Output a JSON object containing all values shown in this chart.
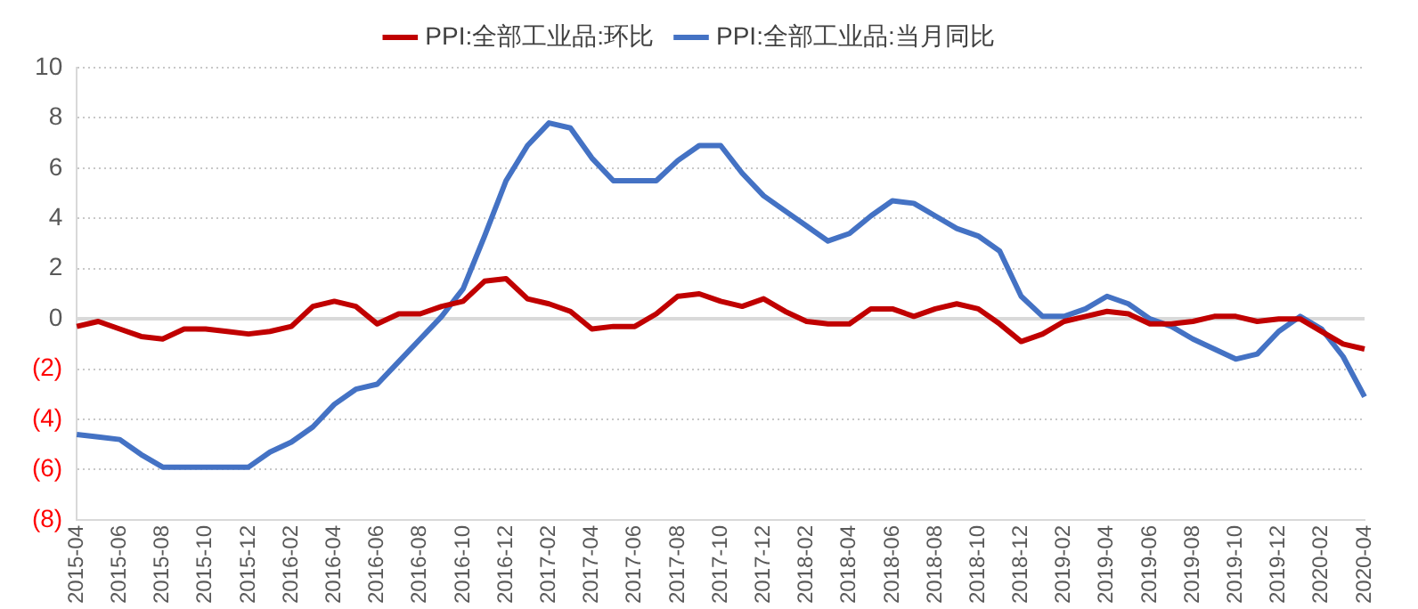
{
  "chart_data": {
    "type": "line",
    "categories": [
      "2015-04",
      null,
      "2015-06",
      null,
      "2015-08",
      null,
      "2015-10",
      null,
      "2015-12",
      null,
      "2016-02",
      null,
      "2016-04",
      null,
      "2016-06",
      null,
      "2016-08",
      null,
      "2016-10",
      null,
      "2016-12",
      null,
      "2017-02",
      null,
      "2017-04",
      null,
      "2017-06",
      null,
      "2017-08",
      null,
      "2017-10",
      null,
      "2017-12",
      null,
      "2018-02",
      null,
      "2018-04",
      null,
      "2018-06",
      null,
      "2018-08",
      null,
      "2018-10",
      null,
      "2018-12",
      null,
      "2019-02",
      null,
      "2019-04",
      null,
      "2019-06",
      null,
      "2019-08",
      null,
      "2019-10",
      null,
      "2019-12",
      null,
      "2020-02",
      null,
      "2020-04"
    ],
    "series": [
      {
        "name": "PPI:全部工业品:环比",
        "color": "#c00000",
        "values": [
          -0.3,
          -0.1,
          -0.4,
          -0.7,
          -0.8,
          -0.4,
          -0.4,
          -0.5,
          -0.6,
          -0.5,
          -0.3,
          0.5,
          0.7,
          0.5,
          -0.2,
          0.2,
          0.2,
          0.5,
          0.7,
          1.5,
          1.6,
          0.8,
          0.6,
          0.3,
          -0.4,
          -0.3,
          -0.3,
          0.2,
          0.9,
          1.0,
          0.7,
          0.5,
          0.8,
          0.3,
          -0.1,
          -0.2,
          -0.2,
          0.4,
          0.4,
          0.1,
          0.4,
          0.6,
          0.4,
          -0.2,
          -0.9,
          -0.6,
          -0.1,
          0.1,
          0.3,
          0.2,
          -0.2,
          -0.2,
          -0.1,
          0.1,
          0.1,
          -0.1,
          0.0,
          0.0,
          -0.5,
          -1.0,
          -1.2
        ]
      },
      {
        "name": "PPI:全部工业品:当月同比",
        "color": "#4472c4",
        "values": [
          -4.6,
          -4.7,
          -4.8,
          -5.4,
          -5.9,
          -5.9,
          -5.9,
          -5.9,
          -5.9,
          -5.3,
          -4.9,
          -4.3,
          -3.4,
          -2.8,
          -2.6,
          -1.7,
          -0.8,
          0.1,
          1.2,
          3.3,
          5.5,
          6.9,
          7.8,
          7.6,
          6.4,
          5.5,
          5.5,
          5.5,
          6.3,
          6.9,
          6.9,
          5.8,
          4.9,
          4.3,
          3.7,
          3.1,
          3.4,
          4.1,
          4.7,
          4.6,
          4.1,
          3.6,
          3.3,
          2.7,
          0.9,
          0.1,
          0.1,
          0.4,
          0.9,
          0.6,
          0.0,
          -0.3,
          -0.8,
          -1.2,
          -1.6,
          -1.4,
          -0.5,
          0.1,
          -0.4,
          -1.5,
          -3.1
        ]
      }
    ],
    "ylim": [
      -8,
      10
    ],
    "yticks": [
      {
        "value": -8,
        "label": "(8)"
      },
      {
        "value": -6,
        "label": "(6)"
      },
      {
        "value": -4,
        "label": "(4)"
      },
      {
        "value": -2,
        "label": "(2)"
      },
      0,
      2,
      4,
      6,
      8,
      10
    ],
    "grid": "y",
    "legend": "top",
    "marker": "none",
    "line_style": "solid"
  }
}
